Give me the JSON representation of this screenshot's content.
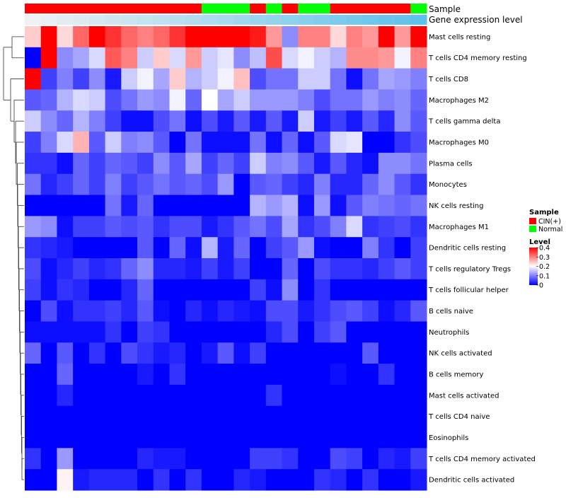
{
  "chart_data": {
    "type": "heatmap",
    "annotation_titles": [
      "Sample",
      "Gene expression level"
    ],
    "rows": [
      "Mast cells resting",
      "T cells CD4 memory resting",
      "T cells CD8",
      "Macrophages M2",
      "T cells gamma delta",
      "Macrophages M0",
      "Plasma cells",
      "Monocytes",
      "NK cells resting",
      "Macrophages M1",
      "Dendritic cells resting",
      "T cells regulatory  Tregs",
      "T cells follicular helper",
      "B cells naive",
      "Neutrophils",
      "NK cells activated",
      "B cells memory",
      "Mast cells activated",
      "T cells CD4 naive",
      "Eosinophils",
      "T cells CD4 memory activated",
      "Dendritic cells activated"
    ],
    "sample_groups": [
      "CIN(+)",
      "CIN(+)",
      "CIN(+)",
      "CIN(+)",
      "CIN(+)",
      "CIN(+)",
      "CIN(+)",
      "CIN(+)",
      "CIN(+)",
      "CIN(+)",
      "CIN(+)",
      "Normal",
      "Normal",
      "Normal",
      "CIN(+)",
      "Normal",
      "CIN(+)",
      "Normal",
      "Normal",
      "CIN(+)",
      "CIN(+)",
      "CIN(+)",
      "CIN(+)",
      "CIN(+)",
      "Normal"
    ],
    "gene_expression_level": [
      0.02,
      0.06,
      0.1,
      0.14,
      0.18,
      0.22,
      0.26,
      0.3,
      0.34,
      0.38,
      0.42,
      0.46,
      0.5,
      0.54,
      0.58,
      0.62,
      0.66,
      0.7,
      0.74,
      0.78,
      0.82,
      0.86,
      0.9,
      0.94,
      0.98
    ],
    "values": [
      [
        0.24,
        0.4,
        0.23,
        0.32,
        0.4,
        0.36,
        0.32,
        0.3,
        0.32,
        0.36,
        0.4,
        0.4,
        0.4,
        0.4,
        0.38,
        0.28,
        0.11,
        0.3,
        0.3,
        0.23,
        0.3,
        0.28,
        0.4,
        0.28,
        0.4
      ],
      [
        0.0,
        0.4,
        0.11,
        0.13,
        0.17,
        0.33,
        0.3,
        0.16,
        0.24,
        0.17,
        0.28,
        0.16,
        0.18,
        0.11,
        0.15,
        0.34,
        0.17,
        0.19,
        0.16,
        0.14,
        0.29,
        0.29,
        0.28,
        0.19,
        0.3
      ],
      [
        0.4,
        0.05,
        0.1,
        0.05,
        0.11,
        0.02,
        0.16,
        0.19,
        0.13,
        0.24,
        0.14,
        0.16,
        0.19,
        0.25,
        0.06,
        0.09,
        0.09,
        0.16,
        0.16,
        0.09,
        0.01,
        0.09,
        0.13,
        0.12,
        0.1
      ],
      [
        0.07,
        0.08,
        0.14,
        0.17,
        0.16,
        0.06,
        0.09,
        0.12,
        0.11,
        0.19,
        0.08,
        0.2,
        0.13,
        0.16,
        0.12,
        0.12,
        0.12,
        0.1,
        0.06,
        0.09,
        0.09,
        0.12,
        0.1,
        0.11,
        0.08
      ],
      [
        0.16,
        0.11,
        0.08,
        0.14,
        0.1,
        0.05,
        0.01,
        0.01,
        0.06,
        0.09,
        0.01,
        0.06,
        0.02,
        0.07,
        0.02,
        0.07,
        0.02,
        0.16,
        0.02,
        0.05,
        0.02,
        0.07,
        0.03,
        0.11,
        0.07
      ],
      [
        0.05,
        0.1,
        0.17,
        0.26,
        0.07,
        0.16,
        0.1,
        0.11,
        0.07,
        0.0,
        0.09,
        0.01,
        0.01,
        0.01,
        0.09,
        0.01,
        0.08,
        0.01,
        0.07,
        0.17,
        0.18,
        0.0,
        0.0,
        0.04,
        0.06
      ],
      [
        0.04,
        0.04,
        0.01,
        0.08,
        0.05,
        0.08,
        0.07,
        0.05,
        0.11,
        0.07,
        0.13,
        0.05,
        0.08,
        0.05,
        0.16,
        0.1,
        0.11,
        0.07,
        0.02,
        0.07,
        0.03,
        0.01,
        0.11,
        0.11,
        0.09
      ],
      [
        0.09,
        0.03,
        0.05,
        0.08,
        0.05,
        0.1,
        0.05,
        0.07,
        0.09,
        0.07,
        0.08,
        0.06,
        0.12,
        0.0,
        0.07,
        0.08,
        0.05,
        0.03,
        0.1,
        0.03,
        0.03,
        0.08,
        0.11,
        0.07,
        0.04
      ],
      [
        0.0,
        0.0,
        0.0,
        0.0,
        0.0,
        0.09,
        0.02,
        0.08,
        0.0,
        0.0,
        0.0,
        0.0,
        0.0,
        0.0,
        0.14,
        0.12,
        0.14,
        0.01,
        0.12,
        0.01,
        0.07,
        0.1,
        0.09,
        0.08,
        0.09
      ],
      [
        0.12,
        0.11,
        0.01,
        0.05,
        0.05,
        0.07,
        0.06,
        0.07,
        0.04,
        0.06,
        0.06,
        0.02,
        0.04,
        0.07,
        0.09,
        0.06,
        0.13,
        0.04,
        0.06,
        0.1,
        0.17,
        0.04,
        0.05,
        0.06,
        0.04
      ],
      [
        0.04,
        0.03,
        0.02,
        0.0,
        0.0,
        0.0,
        0.0,
        0.07,
        0.0,
        0.08,
        0.01,
        0.14,
        0.02,
        0.08,
        0.0,
        0.05,
        0.07,
        0.12,
        0.01,
        0.0,
        0.0,
        0.1,
        0.04,
        0.0,
        0.05
      ],
      [
        0.06,
        0.01,
        0.03,
        0.05,
        0.03,
        0.04,
        0.08,
        0.11,
        0.03,
        0.03,
        0.02,
        0.05,
        0.02,
        0.05,
        0.0,
        0.0,
        0.08,
        0.0,
        0.06,
        0.04,
        0.04,
        0.03,
        0.05,
        0.07,
        0.05
      ],
      [
        0.05,
        0.01,
        0.04,
        0.03,
        0.0,
        0.0,
        0.03,
        0.08,
        0.0,
        0.0,
        0.0,
        0.0,
        0.0,
        0.0,
        0.05,
        0.01,
        0.11,
        0.0,
        0.04,
        0.0,
        0.0,
        0.0,
        0.0,
        0.0,
        0.0
      ],
      [
        0.0,
        0.06,
        0.01,
        0.04,
        0.04,
        0.05,
        0.03,
        0.07,
        0.01,
        0.0,
        0.03,
        0.01,
        0.03,
        0.02,
        0.01,
        0.06,
        0.06,
        0.02,
        0.04,
        0.06,
        0.07,
        0.05,
        0.01,
        0.03,
        0.07
      ],
      [
        0.01,
        0.01,
        0.01,
        0.01,
        0.01,
        0.04,
        0.0,
        0.05,
        0.04,
        0.0,
        0.0,
        0.0,
        0.0,
        0.0,
        0.0,
        0.03,
        0.06,
        0.0,
        0.05,
        0.07,
        0.0,
        0.0,
        0.0,
        0.0,
        0.0
      ],
      [
        0.08,
        0.0,
        0.07,
        0.0,
        0.04,
        0.0,
        0.06,
        0.04,
        0.02,
        0.03,
        0.0,
        0.02,
        0.07,
        0.01,
        0.05,
        0.0,
        0.0,
        0.0,
        0.0,
        0.0,
        0.0,
        0.07,
        0.0,
        0.0,
        0.0
      ],
      [
        0.0,
        0.0,
        0.08,
        0.0,
        0.0,
        0.0,
        0.0,
        0.02,
        0.0,
        0.04,
        0.0,
        0.0,
        0.0,
        0.0,
        0.0,
        0.0,
        0.0,
        0.0,
        0.0,
        0.01,
        0.0,
        0.0,
        0.04,
        0.0,
        0.0
      ],
      [
        0.0,
        0.0,
        0.03,
        0.0,
        0.0,
        0.0,
        0.0,
        0.0,
        0.0,
        0.0,
        0.0,
        0.0,
        0.0,
        0.0,
        0.0,
        0.04,
        0.0,
        0.0,
        0.0,
        0.0,
        0.0,
        0.0,
        0.0,
        0.0,
        0.0
      ],
      [
        0.0,
        0.0,
        0.0,
        0.0,
        0.0,
        0.0,
        0.0,
        0.0,
        0.0,
        0.0,
        0.0,
        0.0,
        0.0,
        0.0,
        0.0,
        0.0,
        0.0,
        0.0,
        0.0,
        0.0,
        0.0,
        0.0,
        0.0,
        0.0,
        0.0
      ],
      [
        0.0,
        0.0,
        0.0,
        0.0,
        0.0,
        0.0,
        0.0,
        0.0,
        0.0,
        0.0,
        0.0,
        0.0,
        0.0,
        0.0,
        0.0,
        0.0,
        0.0,
        0.0,
        0.0,
        0.0,
        0.0,
        0.0,
        0.0,
        0.0,
        0.0
      ],
      [
        0.04,
        0.0,
        0.12,
        0.0,
        0.0,
        0.0,
        0.0,
        0.03,
        0.02,
        0.02,
        0.0,
        0.0,
        0.0,
        0.0,
        0.05,
        0.05,
        0.04,
        0.0,
        0.0,
        0.06,
        0.05,
        0.0,
        0.03,
        0.02,
        0.05
      ],
      [
        0.0,
        0.0,
        0.21,
        0.02,
        0.03,
        0.03,
        0.03,
        0.0,
        0.04,
        0.0,
        0.04,
        0.0,
        0.0,
        0.03,
        0.02,
        0.0,
        0.0,
        0.0,
        0.04,
        0.03,
        0.0,
        0.04,
        0.0,
        0.0,
        0.02
      ]
    ],
    "legend": {
      "sample_title": "Sample",
      "sample_entries": [
        {
          "label": "CIN(+)",
          "color": "#ff0000"
        },
        {
          "label": "Normal",
          "color": "#00ff00"
        }
      ],
      "level_title": "Level",
      "level_ticks": [
        "0.4",
        "0.3",
        "0.2",
        "0.1",
        "0"
      ],
      "level_range": [
        0,
        0.4
      ]
    },
    "colors": {
      "low": "#0000ff",
      "mid": "#ffffff",
      "high": "#ff0000",
      "expr_low": "#f2f2f2",
      "expr_high": "#5bc0eb",
      "dendrogram": "#333333"
    }
  }
}
